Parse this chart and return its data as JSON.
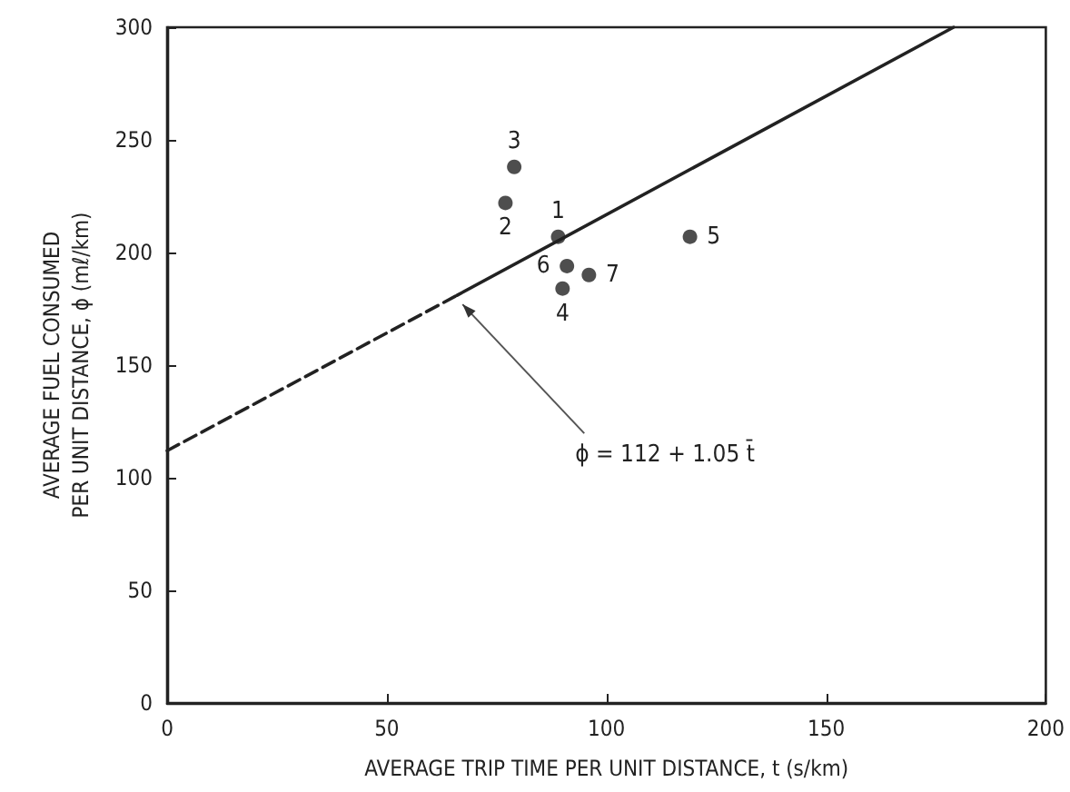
{
  "chart_data": {
    "type": "scatter",
    "xlabel": "AVERAGE TRIP TIME PER UNIT DISTANCE, t (s/km)",
    "ylabel": "AVERAGE FUEL CONSUMED\nPER UNIT DISTANCE, ϕ (mℓ/km)",
    "xlim": [
      0,
      200
    ],
    "xticks": [
      0,
      50,
      100,
      150,
      200
    ],
    "ylim": [
      0,
      300
    ],
    "yticks": [
      0,
      50,
      100,
      150,
      200,
      250,
      300
    ],
    "grid": false,
    "marker": "circle",
    "series": [
      {
        "color": "#222222",
        "x": [
          89,
          77,
          79,
          90,
          119,
          91,
          96
        ],
        "values": [
          207,
          222,
          238,
          184,
          207,
          194,
          190
        ]
      },
      {
        "type": "line",
        "color": "#222222",
        "line_style": "dashed",
        "marker": "none",
        "x": [
          0,
          66
        ],
        "values": [
          112,
          181
        ]
      },
      {
        "type": "line",
        "color": "#222222",
        "line_style": "solid",
        "marker": "none",
        "x": [
          66,
          179
        ],
        "values": [
          181,
          300
        ]
      }
    ],
    "annotations": [
      {
        "text": "ϕ = 112 + 1.05 t̄",
        "x": 66,
        "y": 181
      },
      {
        "text": "1",
        "x": 89,
        "y": 207
      },
      {
        "text": "2",
        "x": 77,
        "y": 222
      },
      {
        "text": "3",
        "x": 79,
        "y": 238
      },
      {
        "text": "4",
        "x": 90,
        "y": 184
      },
      {
        "text": "5",
        "x": 119,
        "y": 207
      },
      {
        "text": "6",
        "x": 91,
        "y": 194
      },
      {
        "text": "7",
        "x": 96,
        "y": 190
      }
    ]
  }
}
